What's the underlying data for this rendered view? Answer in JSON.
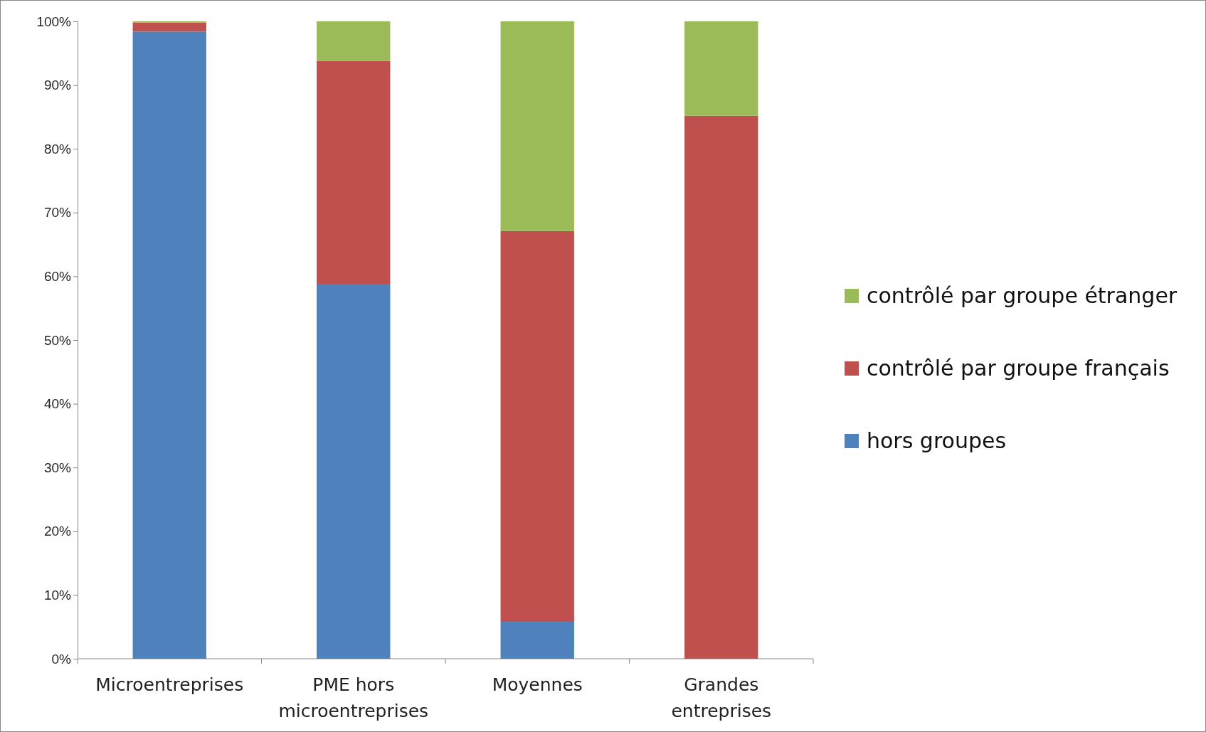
{
  "chart_data": {
    "type": "bar",
    "stacked": true,
    "categories": [
      "Microentreprises",
      "PME hors microentreprises",
      "Moyennes",
      "Grandes entreprises"
    ],
    "series": [
      {
        "name": "hors groupes",
        "color": "#4f81bd",
        "values": [
          98.4,
          58.7,
          5.8,
          0
        ]
      },
      {
        "name": "contrôlé par groupe français",
        "color": "#c0504d",
        "values": [
          1.4,
          35.1,
          61.3,
          85.2
        ]
      },
      {
        "name": "contrôlé par groupe étranger",
        "color": "#9bbb59",
        "values": [
          0.2,
          6.2,
          32.9,
          14.8
        ]
      }
    ],
    "ylim": [
      0,
      100
    ],
    "yticks": [
      {
        "value": 0,
        "label": "0%"
      },
      {
        "value": 10,
        "label": "10%"
      },
      {
        "value": 20,
        "label": "20%"
      },
      {
        "value": 30,
        "label": "30%"
      },
      {
        "value": 40,
        "label": "40%"
      },
      {
        "value": 50,
        "label": "50%"
      },
      {
        "value": 60,
        "label": "60%"
      },
      {
        "value": 70,
        "label": "70%"
      },
      {
        "value": 80,
        "label": "80%"
      },
      {
        "value": 90,
        "label": "90%"
      },
      {
        "value": 100,
        "label": "100%"
      }
    ],
    "legend": "right",
    "grid": false
  }
}
